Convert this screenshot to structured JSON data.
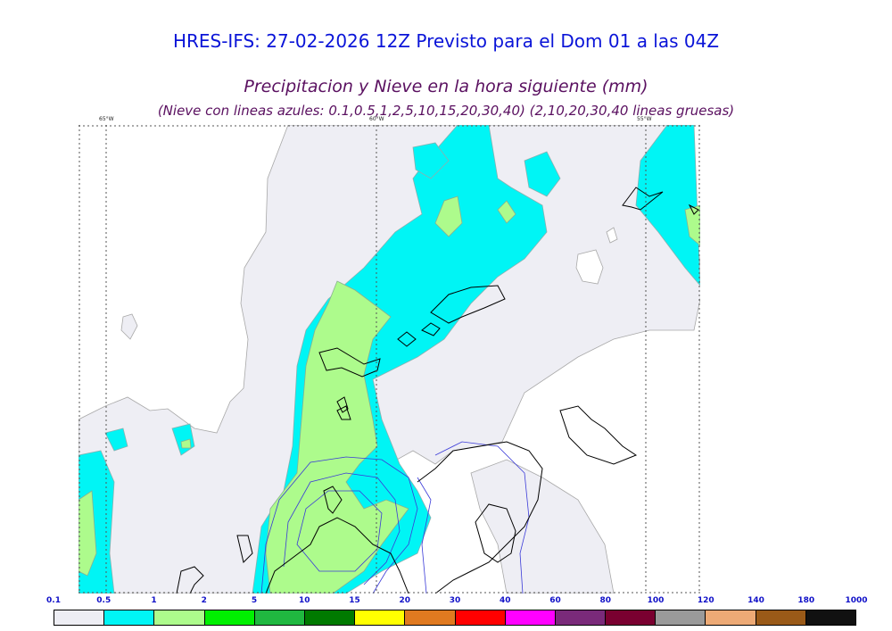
{
  "header": {
    "title": "HRES-IFS: 27-02-2026 12Z Previsto para el Dom 01 a las 04Z",
    "subtitle": "Precipitacion y Nieve en la hora siguiente (mm)",
    "note": "(Nieve con lineas azules: 0.1,0.5,1,2,5,10,15,20,30,40)  (2,10,20,30,40 lineas gruesas)"
  },
  "map": {
    "meridians": [
      {
        "label": "65°W"
      },
      {
        "label": "60°W"
      },
      {
        "label": "55°W"
      }
    ],
    "colors": {
      "v0_1": "#eeeef4",
      "v1": "#00f5f5",
      "v2": "#adfb8c",
      "border": "#000000",
      "snow": "#3a3ad8"
    }
  },
  "legend": {
    "labels": [
      "0.1",
      "0.5",
      "1",
      "2",
      "5",
      "10",
      "15",
      "20",
      "30",
      "40",
      "60",
      "80",
      "100",
      "120",
      "140",
      "180",
      "1000"
    ],
    "colors": [
      "#eeeef4",
      "#00f5f5",
      "#adfb8c",
      "#00f000",
      "#20b840",
      "#007a00",
      "#ffff00",
      "#e07a20",
      "#ff0000",
      "#ff00ff",
      "#7a2a7a",
      "#7a0030",
      "#9a9a9a",
      "#edaa76",
      "#9a5a18",
      "#111111"
    ]
  }
}
